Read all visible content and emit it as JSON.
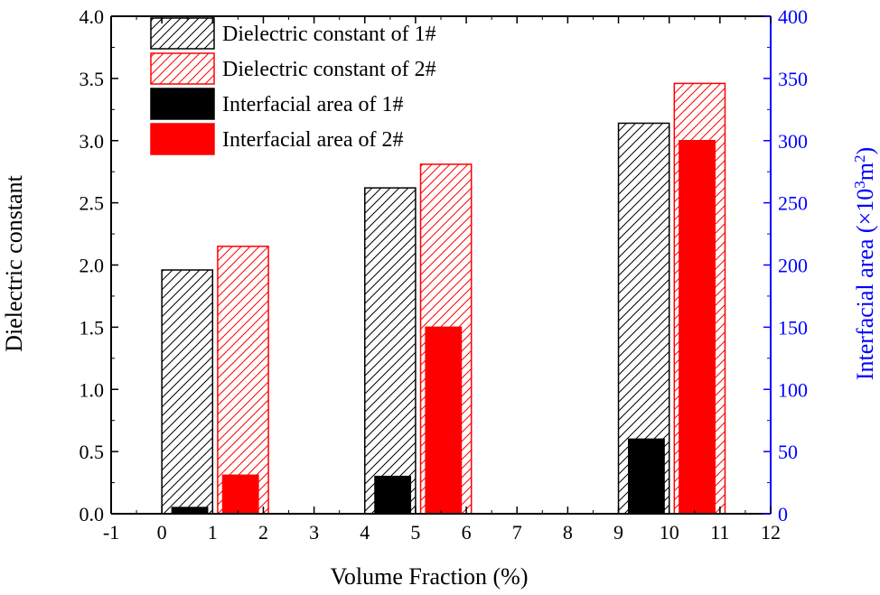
{
  "chart_data": {
    "type": "bar",
    "xlabel": "Volume Fraction (%)",
    "ylabel": "Dielectric constant",
    "y2label": "Interfacial area (×10³m²)",
    "y2label_parts": {
      "main": "Interfacial area (×10",
      "exp1": "3",
      "mid": "m",
      "exp2": "2",
      "end": ")"
    },
    "xlim": [
      -1,
      12
    ],
    "ylim": [
      0,
      4.0
    ],
    "y2lim": [
      0,
      400
    ],
    "x_ticks": [
      "-1",
      "0",
      "1",
      "2",
      "3",
      "4",
      "5",
      "6",
      "7",
      "8",
      "9",
      "10",
      "11",
      "12"
    ],
    "y_ticks": [
      "0.0",
      "0.5",
      "1.0",
      "1.5",
      "2.0",
      "2.5",
      "3.0",
      "3.5",
      "4.0"
    ],
    "y2_ticks": [
      "0",
      "50",
      "100",
      "150",
      "200",
      "250",
      "300",
      "350",
      "400"
    ],
    "series": [
      {
        "name": "Dielectric constant of 1#",
        "axis": "left",
        "style": "hatch",
        "color": "#000000",
        "points": [
          {
            "x0": 0,
            "x1": 1,
            "y": 1.96
          },
          {
            "x0": 4,
            "x1": 5,
            "y": 2.62
          },
          {
            "x0": 9,
            "x1": 10,
            "y": 3.14
          }
        ]
      },
      {
        "name": "Dielectric constant of 2#",
        "axis": "left",
        "style": "hatch",
        "color": "#ff0000",
        "points": [
          {
            "x0": 1.1,
            "x1": 2.1,
            "y": 2.15
          },
          {
            "x0": 5.1,
            "x1": 6.1,
            "y": 2.81
          },
          {
            "x0": 10.1,
            "x1": 11.1,
            "y": 3.46
          }
        ]
      },
      {
        "name": "Interfacial area of 1#",
        "axis": "right",
        "style": "solid",
        "color": "#000000",
        "points": [
          {
            "x0": 0.2,
            "x1": 0.9,
            "y": 5
          },
          {
            "x0": 4.2,
            "x1": 4.9,
            "y": 30
          },
          {
            "x0": 9.2,
            "x1": 9.9,
            "y": 60
          }
        ]
      },
      {
        "name": "Interfacial area of 2#",
        "axis": "right",
        "style": "solid",
        "color": "#ff0000",
        "points": [
          {
            "x0": 1.2,
            "x1": 1.9,
            "y": 31
          },
          {
            "x0": 5.2,
            "x1": 5.9,
            "y": 150
          },
          {
            "x0": 10.2,
            "x1": 10.9,
            "y": 300
          }
        ]
      }
    ],
    "legend_position": "top-left",
    "colors": {
      "left_axis": "#000000",
      "right_axis": "#0000ff"
    }
  }
}
